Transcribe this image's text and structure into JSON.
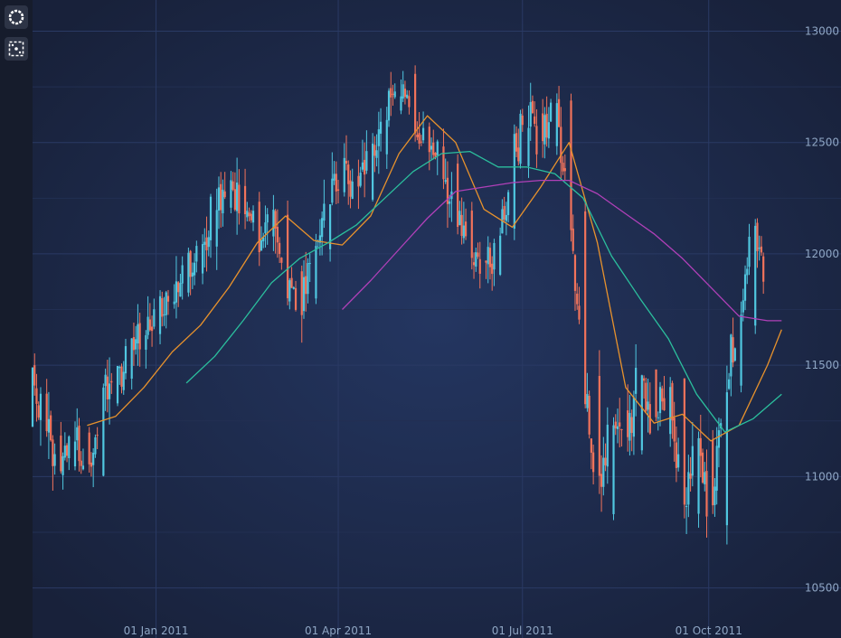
{
  "toolbar": {
    "buttons": [
      {
        "icon": "zoom-extents-icon"
      },
      {
        "icon": "zoom-pan-icon"
      }
    ]
  },
  "colors": {
    "background": "#1b2541",
    "up": "#50c7e0",
    "down": "#f2735b",
    "sma20": "#e8922c",
    "sma50": "#2bbf9d",
    "sma100": "#b040b8",
    "axis_text": "#8fa6c4"
  },
  "chart_data": {
    "type": "candlestick",
    "x_axis": {
      "type": "date",
      "ticks": [
        "01 Jan 2011",
        "01 Apr 2011",
        "01 Jul 2011",
        "01 Oct 2011"
      ]
    },
    "y_axis": {
      "position": "right",
      "ticks": [
        10500,
        11000,
        11500,
        12000,
        12500,
        13000
      ],
      "range": [
        10340,
        13140
      ]
    },
    "x_range": [
      "2010-11-01",
      "2011-11-13"
    ],
    "grid": true,
    "legend": "none",
    "series": [
      {
        "kind": "candles",
        "points": [
          [
            "2010-11-01",
            11210,
            11440
          ],
          [
            "2010-11-07",
            11380,
            11200
          ],
          [
            "2010-11-14",
            11180,
            11020
          ],
          [
            "2010-11-21",
            11050,
            11230
          ],
          [
            "2010-11-28",
            11200,
            10990
          ],
          [
            "2010-12-05",
            11010,
            11350
          ],
          [
            "2010-12-12",
            11320,
            11420
          ],
          [
            "2010-12-19",
            11420,
            11560
          ],
          [
            "2010-12-26",
            11560,
            11650
          ],
          [
            "2011-01-02",
            11640,
            11760
          ],
          [
            "2011-01-09",
            11760,
            11840
          ],
          [
            "2011-01-16",
            11830,
            11940
          ],
          [
            "2011-01-23",
            11930,
            12050
          ],
          [
            "2011-01-30",
            12050,
            12220
          ],
          [
            "2011-02-06",
            12210,
            12330
          ],
          [
            "2011-02-13",
            12320,
            12230
          ],
          [
            "2011-02-20",
            12230,
            12060
          ],
          [
            "2011-02-27",
            12060,
            12180
          ],
          [
            "2011-03-06",
            12170,
            11920
          ],
          [
            "2011-03-13",
            11920,
            11770
          ],
          [
            "2011-03-20",
            11790,
            12040
          ],
          [
            "2011-03-27",
            12030,
            12250
          ],
          [
            "2011-04-03",
            12260,
            12350
          ],
          [
            "2011-04-10",
            12340,
            12250
          ],
          [
            "2011-04-17",
            12250,
            12430
          ],
          [
            "2011-04-24",
            12430,
            12640
          ],
          [
            "2011-05-01",
            12640,
            12800
          ],
          [
            "2011-05-08",
            12790,
            12600
          ],
          [
            "2011-05-15",
            12590,
            12500
          ],
          [
            "2011-05-22",
            12500,
            12420
          ],
          [
            "2011-05-29",
            12420,
            12200
          ],
          [
            "2011-06-05",
            12190,
            11950
          ],
          [
            "2011-06-12",
            11960,
            11900
          ],
          [
            "2011-06-19",
            11910,
            12100
          ],
          [
            "2011-06-26",
            12100,
            12400
          ],
          [
            "2011-07-03",
            12410,
            12660
          ],
          [
            "2011-07-10",
            12650,
            12500
          ],
          [
            "2011-07-17",
            12490,
            12700
          ],
          [
            "2011-07-24",
            12690,
            12200
          ],
          [
            "2011-07-31",
            12200,
            11450
          ],
          [
            "2011-08-07",
            11450,
            10850
          ],
          [
            "2011-08-14",
            10850,
            11300
          ],
          [
            "2011-08-21",
            11280,
            11100
          ],
          [
            "2011-08-28",
            11100,
            11500
          ],
          [
            "2011-09-04",
            11500,
            11200
          ],
          [
            "2011-09-11",
            11200,
            11450
          ],
          [
            "2011-09-18",
            11440,
            10850
          ],
          [
            "2011-09-25",
            10850,
            11150
          ],
          [
            "2011-10-02",
            11150,
            10800
          ],
          [
            "2011-10-09",
            10790,
            11430
          ],
          [
            "2011-10-16",
            11420,
            11650
          ],
          [
            "2011-10-23",
            11660,
            12200
          ],
          [
            "2011-10-30",
            12210,
            11800
          ]
        ]
      },
      {
        "kind": "sma",
        "period": 20,
        "color": "#e8922c",
        "points": [
          [
            "2010-11-28",
            11230
          ],
          [
            "2010-12-12",
            11270
          ],
          [
            "2010-12-26",
            11400
          ],
          [
            "2011-01-09",
            11560
          ],
          [
            "2011-01-23",
            11680
          ],
          [
            "2011-02-06",
            11850
          ],
          [
            "2011-02-20",
            12050
          ],
          [
            "2011-03-06",
            12170
          ],
          [
            "2011-03-20",
            12060
          ],
          [
            "2011-04-03",
            12040
          ],
          [
            "2011-04-17",
            12170
          ],
          [
            "2011-05-01",
            12450
          ],
          [
            "2011-05-15",
            12620
          ],
          [
            "2011-05-29",
            12500
          ],
          [
            "2011-06-12",
            12200
          ],
          [
            "2011-06-26",
            12120
          ],
          [
            "2011-07-10",
            12300
          ],
          [
            "2011-07-24",
            12500
          ],
          [
            "2011-08-07",
            12050
          ],
          [
            "2011-08-21",
            11400
          ],
          [
            "2011-09-04",
            11240
          ],
          [
            "2011-09-18",
            11280
          ],
          [
            "2011-10-02",
            11160
          ],
          [
            "2011-10-16",
            11230
          ],
          [
            "2011-10-30",
            11500
          ],
          [
            "2011-11-06",
            11660
          ]
        ]
      },
      {
        "kind": "sma",
        "period": 50,
        "color": "#2bbf9d",
        "points": [
          [
            "2011-01-16",
            11420
          ],
          [
            "2011-01-30",
            11540
          ],
          [
            "2011-02-13",
            11700
          ],
          [
            "2011-02-27",
            11870
          ],
          [
            "2011-03-13",
            11980
          ],
          [
            "2011-03-27",
            12050
          ],
          [
            "2011-04-10",
            12130
          ],
          [
            "2011-04-24",
            12250
          ],
          [
            "2011-05-08",
            12370
          ],
          [
            "2011-05-22",
            12450
          ],
          [
            "2011-06-05",
            12460
          ],
          [
            "2011-06-19",
            12390
          ],
          [
            "2011-07-03",
            12390
          ],
          [
            "2011-07-17",
            12360
          ],
          [
            "2011-07-31",
            12250
          ],
          [
            "2011-08-14",
            11990
          ],
          [
            "2011-08-28",
            11800
          ],
          [
            "2011-09-11",
            11620
          ],
          [
            "2011-09-25",
            11370
          ],
          [
            "2011-10-09",
            11200
          ],
          [
            "2011-10-23",
            11260
          ],
          [
            "2011-11-06",
            11370
          ]
        ]
      },
      {
        "kind": "sma",
        "period": 100,
        "color": "#b040b8",
        "points": [
          [
            "2011-04-03",
            11750
          ],
          [
            "2011-04-17",
            11880
          ],
          [
            "2011-05-01",
            12020
          ],
          [
            "2011-05-15",
            12160
          ],
          [
            "2011-05-29",
            12280
          ],
          [
            "2011-06-12",
            12300
          ],
          [
            "2011-06-26",
            12320
          ],
          [
            "2011-07-10",
            12330
          ],
          [
            "2011-07-24",
            12330
          ],
          [
            "2011-08-07",
            12270
          ],
          [
            "2011-08-21",
            12180
          ],
          [
            "2011-09-04",
            12090
          ],
          [
            "2011-09-18",
            11980
          ],
          [
            "2011-10-02",
            11850
          ],
          [
            "2011-10-16",
            11720
          ],
          [
            "2011-10-30",
            11700
          ],
          [
            "2011-11-06",
            11700
          ]
        ]
      }
    ]
  }
}
